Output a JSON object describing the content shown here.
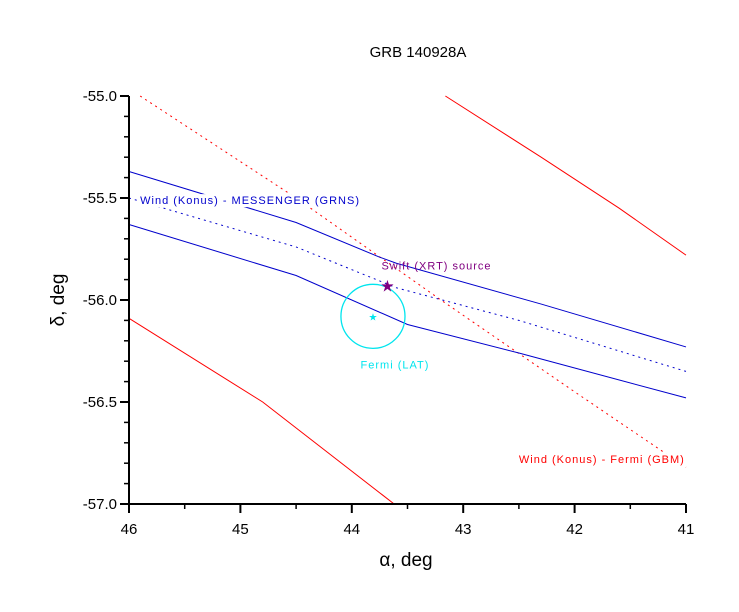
{
  "chart_data": {
    "type": "line",
    "title": "GRB 140928A",
    "xlabel": "α, deg",
    "ylabel": "δ, deg",
    "xlim": [
      46,
      41
    ],
    "ylim": [
      -57.0,
      -55.0
    ],
    "xticks": [
      "46",
      "45",
      "44",
      "43",
      "42",
      "41"
    ],
    "yticks": [
      "-55.0",
      "-55.5",
      "-56.0",
      "-56.5",
      "-57.0"
    ],
    "colors": {
      "red": "#ff0000",
      "blue": "#0000cc",
      "cyan": "#00e5ee",
      "purple": "#800080"
    },
    "series": [
      {
        "name": "konus-gbm-upper",
        "color": "#ff0000",
        "style": "solid",
        "points": [
          [
            43.16,
            -55.0
          ],
          [
            42.3,
            -55.3
          ],
          [
            41.6,
            -55.55
          ],
          [
            41,
            -55.78
          ]
        ]
      },
      {
        "name": "konus-gbm-center",
        "color": "#ff0000",
        "style": "dashed",
        "points": [
          [
            45.9,
            -55.0
          ],
          [
            44.5,
            -55.5
          ],
          [
            43.2,
            -56.0
          ],
          [
            42.0,
            -56.45
          ],
          [
            41,
            -56.82
          ]
        ]
      },
      {
        "name": "konus-gbm-lower",
        "color": "#ff0000",
        "style": "solid",
        "points": [
          [
            46,
            -56.09
          ],
          [
            44.8,
            -56.5
          ],
          [
            43.62,
            -57.0
          ]
        ]
      },
      {
        "name": "konus-messenger-upper",
        "color": "#0000cc",
        "style": "solid",
        "points": [
          [
            46,
            -55.37
          ],
          [
            44.5,
            -55.62
          ],
          [
            43.75,
            -55.79
          ],
          [
            43.6,
            -55.82
          ],
          [
            42.3,
            -56.02
          ],
          [
            41,
            -56.23
          ]
        ]
      },
      {
        "name": "konus-messenger-center",
        "color": "#0000cc",
        "style": "dashed",
        "points": [
          [
            46,
            -55.5
          ],
          [
            44.5,
            -55.74
          ],
          [
            43.6,
            -55.94
          ],
          [
            42.5,
            -56.1
          ],
          [
            41,
            -56.35
          ]
        ]
      },
      {
        "name": "konus-messenger-lower",
        "color": "#0000cc",
        "style": "solid",
        "points": [
          [
            46,
            -55.63
          ],
          [
            44.5,
            -55.88
          ],
          [
            43.5,
            -56.12
          ],
          [
            42.5,
            -56.26
          ],
          [
            41,
            -56.48
          ]
        ]
      }
    ],
    "fermi_lat": {
      "label": "Fermi (LAT)",
      "ra": 43.81,
      "dec": -56.08,
      "radius_deg": 0.157
    },
    "swift_xrt": {
      "label": "Swift (XRT) source",
      "ra": 43.68,
      "dec": -55.93
    },
    "annotations": [
      {
        "text": "Wind (Konus) - MESSENGER (GRNS)",
        "color": "#0000cc",
        "ra": 45.9,
        "dec": -55.53
      },
      {
        "text": "Wind (Konus) - Fermi (GBM)",
        "color": "#ff0000",
        "ra": 42.5,
        "dec": -56.8
      }
    ]
  }
}
